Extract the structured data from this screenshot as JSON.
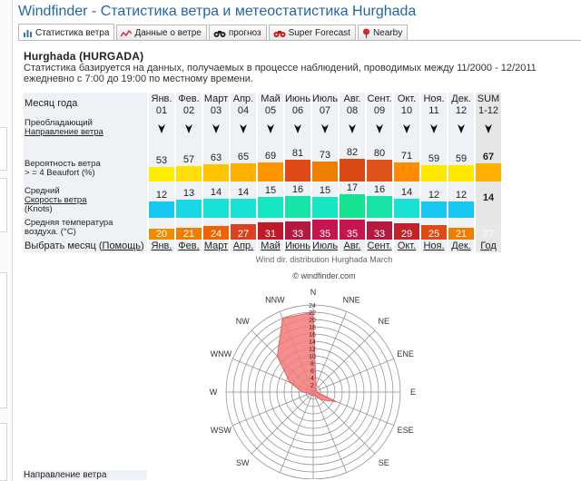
{
  "page_title": "Windfinder - Статистика ветра и метеостатистика Hurghada",
  "tabs": [
    {
      "label": "Статистика ветра",
      "icon": "bar-chart-icon",
      "active": true
    },
    {
      "label": "Данные о ветре",
      "icon": "line-chart-icon",
      "active": false
    },
    {
      "label": "прогноз",
      "icon": "binoculars-icon",
      "active": false
    },
    {
      "label": "Super Forecast",
      "icon": "binoculars-red-icon",
      "active": false
    },
    {
      "label": "Nearby",
      "icon": "map-pin-icon",
      "active": false
    }
  ],
  "station": {
    "name": "Hurghada (HURGADA)",
    "description": "Статистика базируется на данных, получаемых в процессе наблюдений, проводимых между 11/2000 - 12/2011 ежедневно с 7:00 до 19:00 по местному времени."
  },
  "table": {
    "labels": {
      "month": "Месяц года",
      "direction_1": "Преобладающий",
      "direction_2": "Направление ветра",
      "probability_1": "Вероятность ветра",
      "probability_2": "> = 4 Beaufort (%)",
      "speed_1": "Средний",
      "speed_2": "Скорость ветра",
      "speed_3": "(Knots)",
      "temp_1": "Средняя температура",
      "temp_2": "воздуха. (°C)",
      "select_month": "Выбрать месяц (",
      "help": "Помощь",
      "select_month_close": ")"
    },
    "months": [
      "Янв.",
      "Фев.",
      "Март",
      "Апр.",
      "Май",
      "Июнь",
      "Июль",
      "Авг.",
      "Сент.",
      "Окт.",
      "Ноя.",
      "Дек."
    ],
    "month_nums": [
      "01",
      "02",
      "03",
      "04",
      "05",
      "06",
      "07",
      "08",
      "09",
      "10",
      "11",
      "12"
    ],
    "sum_label": "SUM",
    "sum_range": "1-12",
    "probability": [
      53,
      57,
      63,
      65,
      69,
      81,
      73,
      82,
      80,
      71,
      59,
      59
    ],
    "probability_sum": "67",
    "probability_colors": [
      "#ffec00",
      "#ffde00",
      "#ffc300",
      "#ffb000",
      "#ff9400",
      "#e04a17",
      "#ef7d00",
      "#d94a17",
      "#e0531a",
      "#ff8c00",
      "#ffe800",
      "#ffe800"
    ],
    "probability_sum_color": "#ffb000",
    "speed": [
      12,
      13,
      14,
      14,
      15,
      16,
      15,
      17,
      16,
      14,
      12,
      12
    ],
    "speed_sum": "14",
    "speed_colors": [
      "#17c8f0",
      "#17d8e4",
      "#17e2d4",
      "#17e2d4",
      "#17e6c4",
      "#17e2a8",
      "#17e6c4",
      "#17e292",
      "#17e2a8",
      "#17e2d4",
      "#17c8f0",
      "#17c8f0"
    ],
    "temperature": [
      20,
      21,
      24,
      27,
      31,
      33,
      35,
      35,
      33,
      29,
      25,
      21
    ],
    "temperature_sum": "27",
    "temperature_colors": [
      "#ef8c00",
      "#ef7d00",
      "#ef6400",
      "#d9421c",
      "#bf1a2a",
      "#b41a40",
      "#c7164f",
      "#c7164f",
      "#b41a40",
      "#c4222a",
      "#e04a17",
      "#ef7d00"
    ],
    "select_links": [
      "Янв.",
      "Фев.",
      "Март",
      "Апр.",
      "Май",
      "Июнь",
      "Июль",
      "Авг.",
      "Сент.",
      "Окт.",
      "Ноя.",
      "Дек.",
      "Год"
    ]
  },
  "rose": {
    "title": "Wind dir. distribution Hurghada March",
    "copyright": "© windfinder.com",
    "directions": [
      "N",
      "NNE",
      "NE",
      "ENE",
      "E",
      "ESE",
      "SE",
      "SSE",
      "S",
      "SSW",
      "SW",
      "WSW",
      "W",
      "WNW",
      "NW",
      "NNW"
    ],
    "ring_labels": [
      "2",
      "4",
      "6",
      "8",
      "10",
      "12",
      "14",
      "16",
      "18",
      "20",
      "22",
      "24"
    ],
    "values_percent": [
      22,
      2,
      1,
      1,
      1,
      7,
      3,
      1,
      1,
      1,
      1,
      1,
      3,
      7,
      14,
      22
    ],
    "fill_color": "#f47a7a"
  },
  "bottom_label": "Направление ветра"
}
